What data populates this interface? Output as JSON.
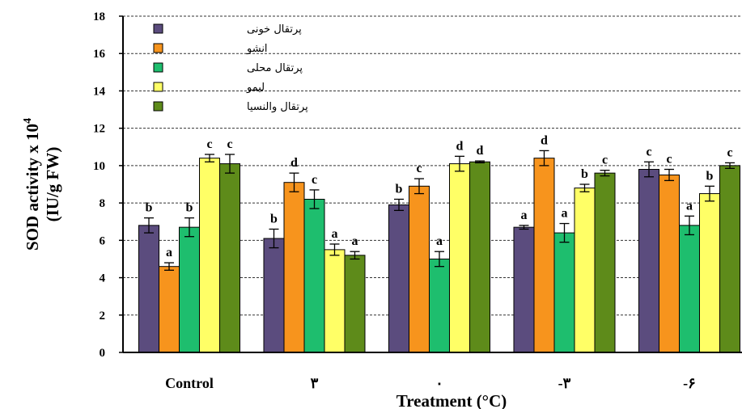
{
  "chart_data": {
    "type": "bar",
    "xlabel": "Treatment (°C)",
    "ylabel_line1": "SOD activity x 10",
    "ylabel_sup": "4",
    "ylabel_line2": "(IU/g FW)",
    "ylim": [
      0,
      18
    ],
    "yticks": [
      "0",
      "2",
      "4",
      "6",
      "8",
      "10",
      "12",
      "14",
      "16",
      "18"
    ],
    "categories": [
      "Control",
      "۳",
      "۰",
      "-۳",
      "-۶"
    ],
    "legend_position": "top-left",
    "grid": "dashed horizontal at major ticks",
    "series": [
      {
        "name": "پرتقال خونی",
        "color": "#5b4c7e",
        "values": [
          6.8,
          6.1,
          7.9,
          6.7,
          9.8
        ],
        "errors": [
          0.4,
          0.5,
          0.3,
          0.1,
          0.4
        ],
        "labels": [
          "b",
          "b",
          "b",
          "a",
          "c"
        ]
      },
      {
        "name": "انشو",
        "color": "#f7941d",
        "values": [
          4.6,
          9.1,
          8.9,
          10.4,
          9.5
        ],
        "errors": [
          0.2,
          0.5,
          0.4,
          0.4,
          0.3
        ],
        "labels": [
          "a",
          "d",
          "c",
          "d",
          "c"
        ]
      },
      {
        "name": "پرتقال محلی",
        "color": "#1ebe6e",
        "values": [
          6.7,
          8.2,
          5.0,
          6.4,
          6.8
        ],
        "errors": [
          0.5,
          0.5,
          0.4,
          0.5,
          0.5
        ],
        "labels": [
          "b",
          "c",
          "a",
          "a",
          "a"
        ]
      },
      {
        "name": "لیمو",
        "color": "#ffff66",
        "values": [
          10.4,
          5.5,
          10.1,
          8.8,
          8.5
        ],
        "errors": [
          0.2,
          0.3,
          0.4,
          0.2,
          0.4
        ],
        "labels": [
          "c",
          "a",
          "d",
          "b",
          "b"
        ]
      },
      {
        "name": "پرتقال والنسیا",
        "color": "#5e8b1a",
        "values": [
          10.1,
          5.2,
          10.2,
          9.6,
          10.0
        ],
        "errors": [
          0.5,
          0.2,
          0.05,
          0.15,
          0.15
        ],
        "labels": [
          "c",
          "a",
          "d",
          "c",
          "c"
        ]
      }
    ]
  }
}
